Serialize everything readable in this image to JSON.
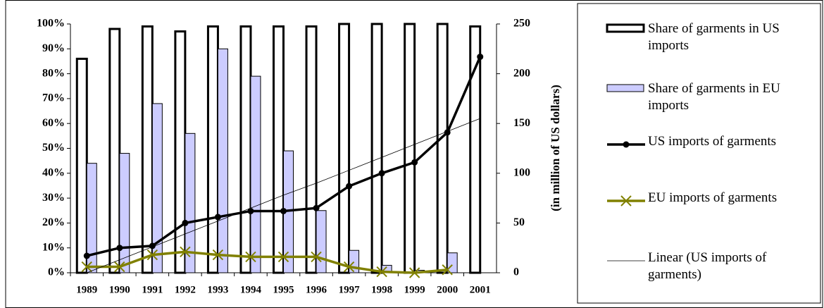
{
  "chart_data": {
    "type": "bar",
    "y2_title": "(in million of US dollars)",
    "categories": [
      "1989",
      "1990",
      "1991",
      "1992",
      "1993",
      "1994",
      "1995",
      "1996",
      "1997",
      "1998",
      "1999",
      "2000",
      "2001"
    ],
    "ylim": [
      0,
      100
    ],
    "yticks": [
      {
        "value": 0,
        "label": "0%"
      },
      {
        "value": 10,
        "label": "10%"
      },
      {
        "value": 20,
        "label": "20%"
      },
      {
        "value": 30,
        "label": "30%"
      },
      {
        "value": 40,
        "label": "40%"
      },
      {
        "value": 50,
        "label": "50%"
      },
      {
        "value": 60,
        "label": "60%"
      },
      {
        "value": 70,
        "label": "70%"
      },
      {
        "value": 80,
        "label": "80%"
      },
      {
        "value": 90,
        "label": "90%"
      },
      {
        "value": 100,
        "label": "100%"
      }
    ],
    "y2lim": [
      0,
      250
    ],
    "y2ticks": [
      0,
      50,
      100,
      150,
      200,
      250
    ],
    "series": [
      {
        "name": "Share of garments in US imports",
        "type": "bar",
        "color": "#ffffff",
        "values": [
          86,
          98,
          99,
          97,
          99,
          99,
          99,
          99,
          100,
          100,
          100,
          100,
          99
        ]
      },
      {
        "name": "Share of garments in EU imports",
        "type": "bar",
        "color": "#ccccff",
        "values": [
          44,
          48,
          68,
          56,
          90,
          79,
          49,
          25,
          9,
          3,
          1,
          8,
          0
        ]
      },
      {
        "name": "US imports of garments",
        "type": "line",
        "axis": "y2",
        "color": "#000000",
        "marker": "circle",
        "values": [
          17,
          25,
          27,
          50,
          56,
          62,
          62,
          65,
          87,
          100,
          111,
          141,
          217
        ]
      },
      {
        "name": "EU imports of garments",
        "type": "line",
        "axis": "y2",
        "color": "#808000",
        "marker": "x",
        "values": [
          6,
          6,
          18,
          21,
          18,
          16,
          16,
          16,
          6,
          1,
          0,
          3,
          null
        ]
      },
      {
        "name": "Linear (US imports of garments)",
        "type": "line",
        "axis": "y2",
        "color": "#000000",
        "marker": "none",
        "values": [
          0,
          13,
          26,
          39,
          52,
          65,
          78,
          90,
          103,
          116,
          129,
          142,
          155
        ]
      }
    ]
  }
}
